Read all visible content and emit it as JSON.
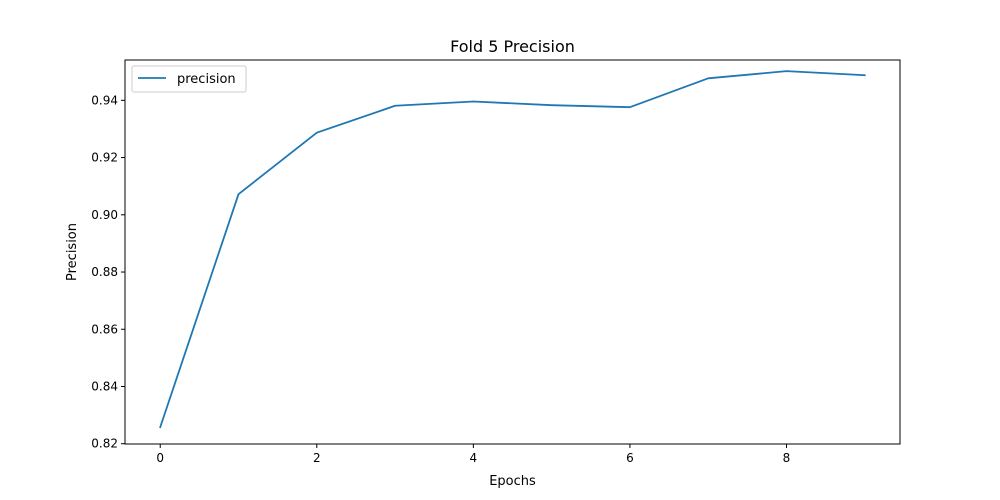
{
  "chart_data": {
    "type": "line",
    "title": "Fold 5 Precision",
    "xlabel": "Epochs",
    "ylabel": "Precision",
    "x": [
      0,
      1,
      2,
      3,
      4,
      5,
      6,
      7,
      8,
      9
    ],
    "series": [
      {
        "name": "precision",
        "color": "#1f77b4",
        "values": [
          0.8258,
          0.9072,
          0.9287,
          0.9381,
          0.9396,
          0.9383,
          0.9376,
          0.9477,
          0.9502,
          0.9488
        ]
      }
    ],
    "xlim": [
      -0.45,
      9.45
    ],
    "ylim": [
      0.8199,
      0.9541
    ],
    "xticks": [
      "0",
      "2",
      "4",
      "6",
      "8"
    ],
    "yticks": [
      "0.82",
      "0.84",
      "0.86",
      "0.88",
      "0.90",
      "0.92",
      "0.94"
    ],
    "grid": false,
    "legend": "upper left"
  }
}
